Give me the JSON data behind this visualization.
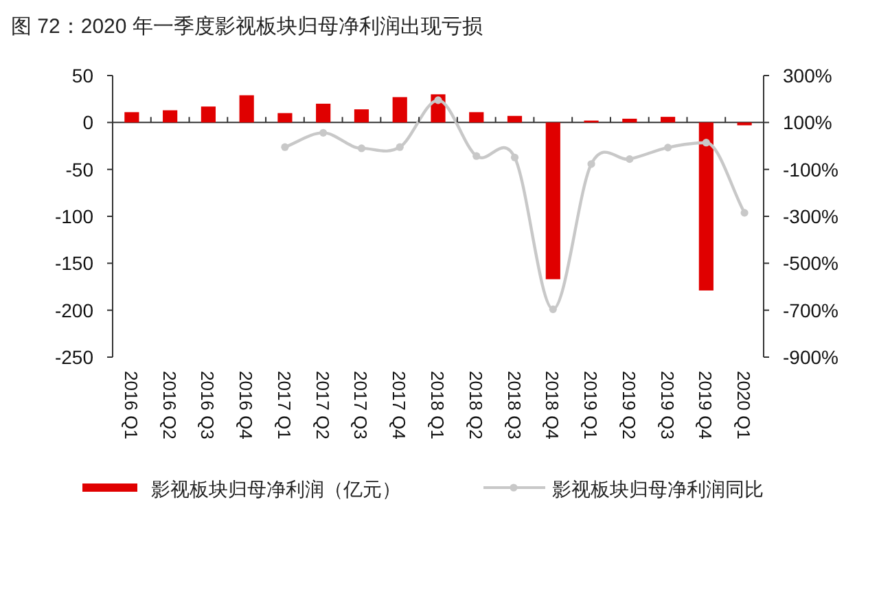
{
  "chart_data": {
    "type": "bar",
    "title": "图 72：2020 年一季度影视板块归母净利润出现亏损",
    "categories": [
      "2016 Q1",
      "2016 Q2",
      "2016 Q3",
      "2016 Q4",
      "2017 Q1",
      "2017 Q2",
      "2017 Q3",
      "2017 Q4",
      "2018 Q1",
      "2018 Q2",
      "2018 Q3",
      "2018 Q4",
      "2019 Q1",
      "2019 Q2",
      "2019 Q3",
      "2019 Q4",
      "2020 Q1"
    ],
    "series": [
      {
        "name": "影视板块归母净利润（亿元）",
        "color": "#e00000",
        "values": [
          11,
          13,
          17,
          29,
          10,
          20,
          14,
          27,
          30,
          11,
          7,
          -167,
          2,
          4,
          6,
          -179,
          -3
        ]
      },
      {
        "name": "影视板块归母净利润同比",
        "type": "line",
        "axis": "y2",
        "marker": "circle",
        "color": "#c8c8c8",
        "values": [
          null,
          null,
          null,
          null,
          -5,
          56,
          -10,
          -5,
          195,
          -43,
          -49,
          -696,
          -77,
          -56,
          -7,
          14,
          -285
        ]
      }
    ],
    "ylim": [
      -250,
      50
    ],
    "yticks": [
      -250,
      -200,
      -150,
      -100,
      -50,
      0,
      50
    ],
    "y2lim": [
      -900,
      300
    ],
    "y2ticks": [
      {
        "value": -900,
        "label": "-900%"
      },
      {
        "value": -700,
        "label": "-700%"
      },
      {
        "value": -500,
        "label": "-500%"
      },
      {
        "value": -300,
        "label": "-300%"
      },
      {
        "value": -100,
        "label": "-100%"
      },
      {
        "value": 100,
        "label": "100%"
      },
      {
        "value": 300,
        "label": "300%"
      }
    ],
    "legend": "bottom"
  }
}
